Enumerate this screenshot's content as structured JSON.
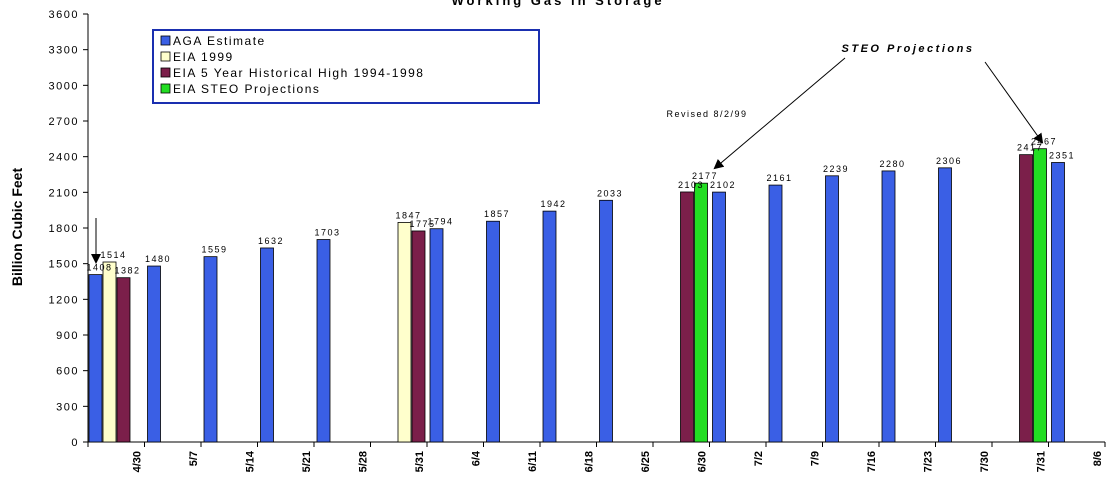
{
  "chart_data": {
    "type": "bar",
    "title": "Working Gas in Storage",
    "ylabel": "Billion Cubic Feet",
    "xlabel": "",
    "ylim": [
      0,
      3600
    ],
    "yticks": [
      0,
      300,
      600,
      900,
      1200,
      1500,
      1800,
      2100,
      2400,
      2700,
      3000,
      3300,
      3600
    ],
    "legend_position": "top-left",
    "grid": false,
    "categories": [
      "4/30",
      "5/7",
      "5/14",
      "5/21",
      "5/28",
      "5/31",
      "6/4",
      "6/11",
      "6/18",
      "6/25",
      "6/30",
      "7/2",
      "7/9",
      "7/16",
      "7/23",
      "7/30",
      "7/31",
      "8/6"
    ],
    "series": [
      {
        "name": "AGA Estimate",
        "color": "#3a5fe5",
        "values": [
          1408,
          1480,
          1559,
          1632,
          1703,
          null,
          1794,
          1857,
          1942,
          2033,
          null,
          2102,
          2161,
          2239,
          2280,
          2306,
          null,
          2351
        ],
        "labels": [
          "1408",
          "1480",
          "1559",
          "1632",
          "1703",
          null,
          "1794",
          "1857",
          "1942",
          "2033",
          null,
          "2102",
          "2161",
          "2239",
          "2280",
          "2306",
          null,
          "2351"
        ]
      },
      {
        "name": "EIA 1999",
        "color": "#ffffcc",
        "values": [
          1514,
          null,
          null,
          null,
          null,
          1847,
          null,
          null,
          null,
          null,
          null,
          null,
          null,
          null,
          null,
          null,
          null,
          null
        ],
        "labels": [
          "1514",
          null,
          null,
          null,
          null,
          "1847",
          null,
          null,
          null,
          null,
          null,
          null,
          null,
          null,
          null,
          null,
          null,
          null
        ]
      },
      {
        "name": "EIA 5 Year Historical High 1994-1998",
        "color": "#7b1f4a",
        "values": [
          1382,
          null,
          null,
          null,
          null,
          1775,
          null,
          null,
          null,
          null,
          2103,
          null,
          null,
          null,
          null,
          null,
          2417,
          null
        ],
        "labels": [
          "1382",
          null,
          null,
          null,
          null,
          "1775",
          null,
          null,
          null,
          null,
          "2103",
          null,
          null,
          null,
          null,
          null,
          "2417",
          null
        ]
      },
      {
        "name": "EIA STEO Projections",
        "color": "#22dd22",
        "values": [
          null,
          null,
          null,
          null,
          null,
          null,
          null,
          null,
          null,
          null,
          2177,
          null,
          null,
          null,
          null,
          null,
          2467,
          null
        ],
        "labels": [
          null,
          null,
          null,
          null,
          null,
          null,
          null,
          null,
          null,
          null,
          "2177",
          null,
          null,
          null,
          null,
          null,
          "2467",
          null
        ]
      }
    ],
    "annotations": [
      {
        "text": "STEO Projections",
        "points_to": [
          "6/30",
          "7/31"
        ]
      },
      {
        "text": "Revised 8/2/99",
        "points_to": [
          "6/30"
        ]
      }
    ]
  }
}
